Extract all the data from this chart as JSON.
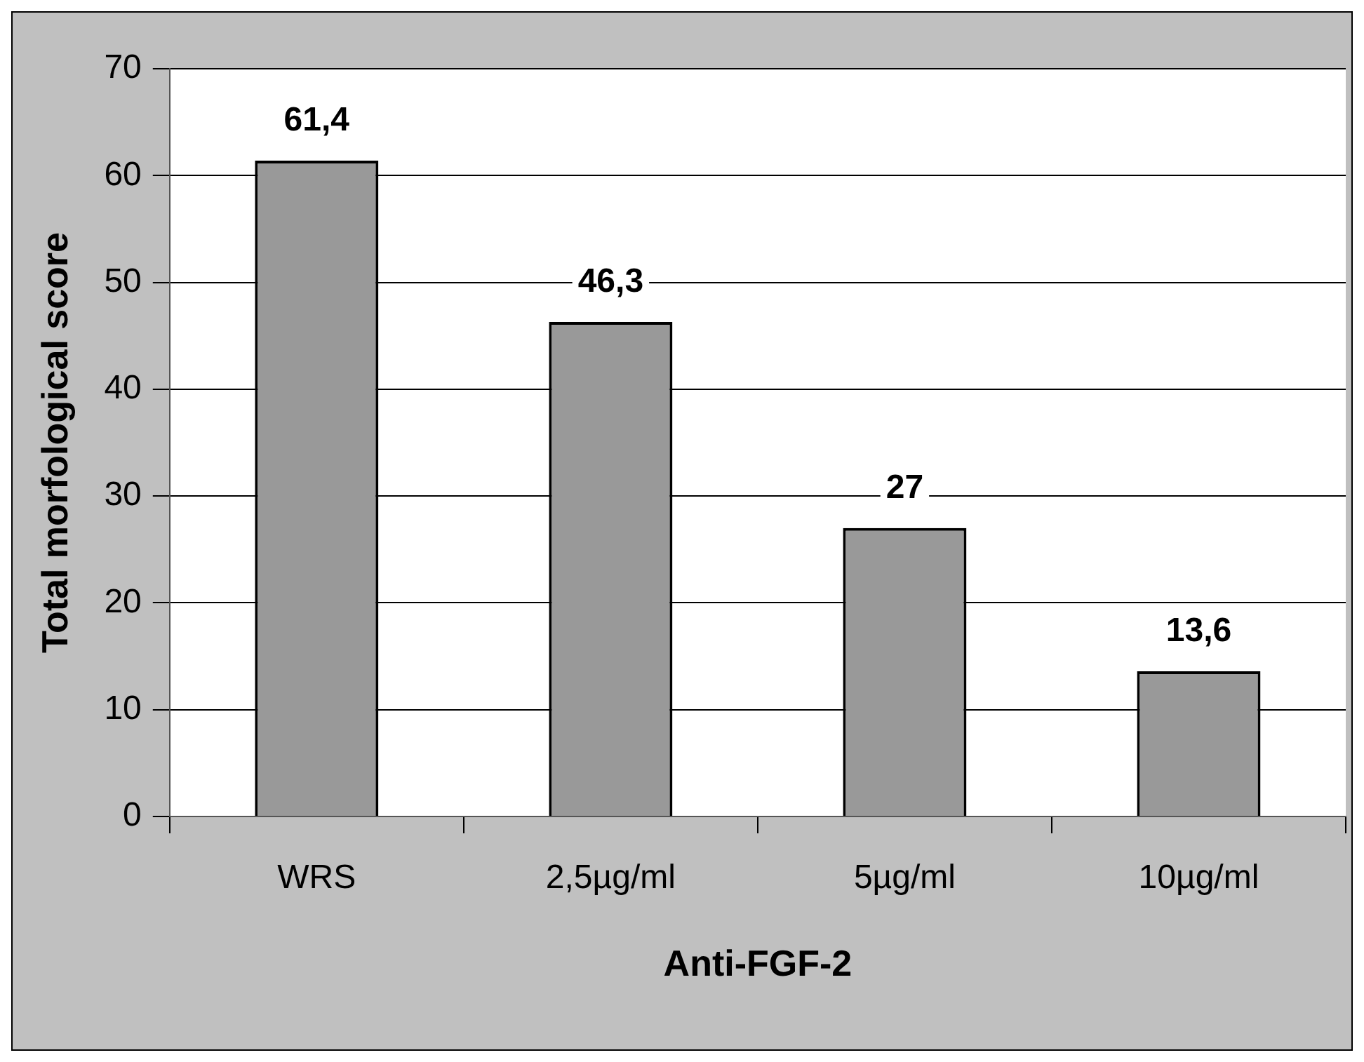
{
  "chart_data": {
    "type": "bar",
    "xlabel": "Anti-FGF-2",
    "ylabel": "Total morfological score",
    "categories": [
      "WRS",
      "2,5µg/ml",
      "5µg/ml",
      "10µg/ml"
    ],
    "values": [
      61.4,
      46.3,
      27,
      13.6
    ],
    "value_labels": [
      "61,4",
      "46,3",
      "27",
      "13,6"
    ],
    "color": "#999999",
    "ylim": [
      0,
      70
    ],
    "yticks": [
      0,
      10,
      20,
      30,
      40,
      50,
      60,
      70
    ],
    "grid": "y",
    "legend": false
  }
}
